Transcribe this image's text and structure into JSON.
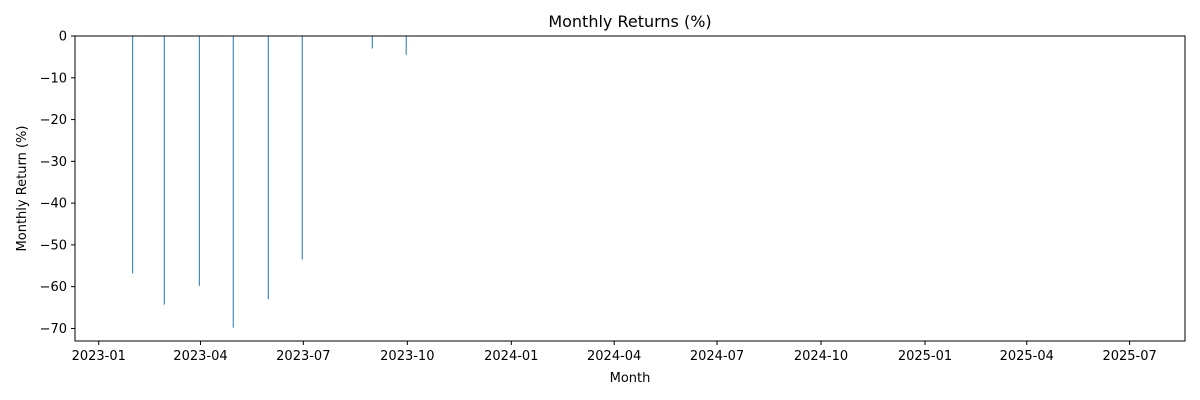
{
  "chart_data": {
    "type": "bar",
    "title": "Monthly Returns (%)",
    "xlabel": "Month",
    "ylabel": "Monthly Return (%)",
    "x_type": "date",
    "xlim": [
      "2022-12-11",
      "2025-08-19"
    ],
    "ylim": [
      -73,
      0
    ],
    "grid": false,
    "x_ticks": [
      "2023-01",
      "2023-04",
      "2023-07",
      "2023-10",
      "2024-01",
      "2024-04",
      "2024-07",
      "2024-10",
      "2025-01",
      "2025-04",
      "2025-07"
    ],
    "y_ticks": [
      0,
      -10,
      -20,
      -30,
      -40,
      -50,
      -60,
      -70
    ],
    "color": "#1f77b4",
    "points": [
      {
        "date": "2023-01-31",
        "value": -56.8
      },
      {
        "date": "2023-02-28",
        "value": -64.3
      },
      {
        "date": "2023-03-31",
        "value": -59.8
      },
      {
        "date": "2023-04-30",
        "value": -69.8
      },
      {
        "date": "2023-05-31",
        "value": -63.0
      },
      {
        "date": "2023-06-30",
        "value": -53.5
      },
      {
        "date": "2023-08-31",
        "value": -3.0
      },
      {
        "date": "2023-09-30",
        "value": -4.5
      }
    ]
  }
}
